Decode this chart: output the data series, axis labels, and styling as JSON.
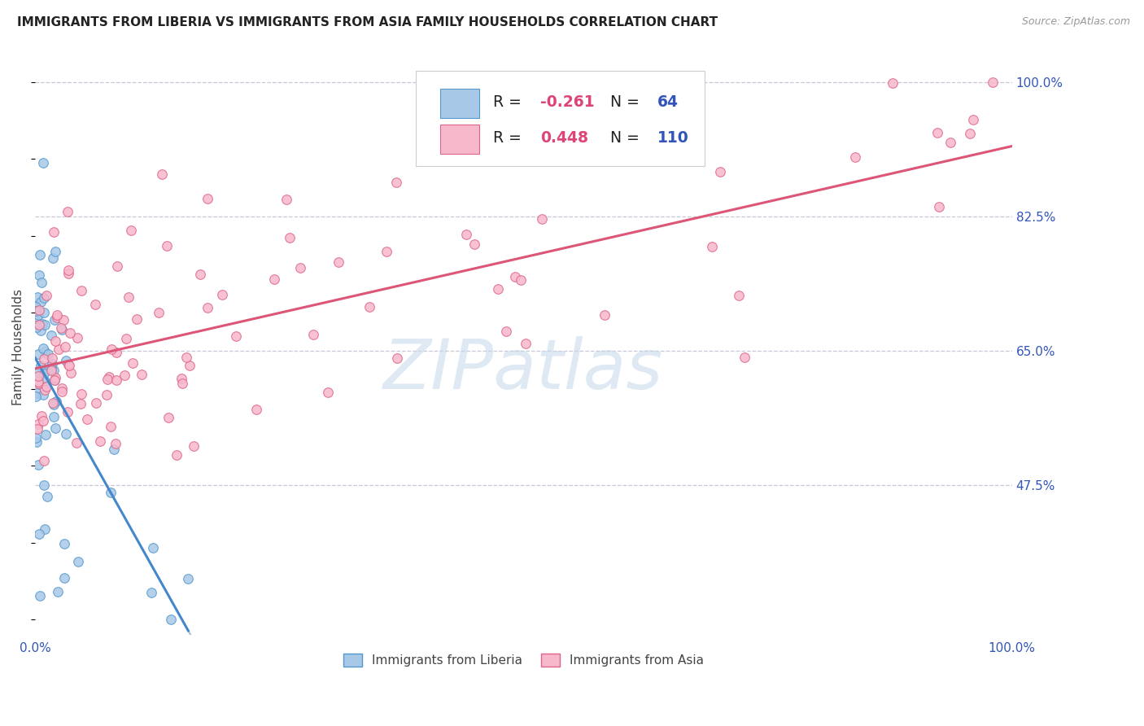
{
  "title": "IMMIGRANTS FROM LIBERIA VS IMMIGRANTS FROM ASIA FAMILY HOUSEHOLDS CORRELATION CHART",
  "source_text": "Source: ZipAtlas.com",
  "ylabel": "Family Households",
  "watermark": "ZIPatlas",
  "legend_liberia_R": "-0.261",
  "legend_liberia_N": "64",
  "legend_asia_R": "0.448",
  "legend_asia_N": "110",
  "xlim": [
    0.0,
    1.0
  ],
  "ylim": [
    0.28,
    1.03
  ],
  "yticks": [
    0.475,
    0.65,
    0.825,
    1.0
  ],
  "ytick_labels": [
    "47.5%",
    "65.0%",
    "82.5%",
    "100.0%"
  ],
  "xtick_labels": [
    "0.0%",
    "100.0%"
  ],
  "background_color": "#ffffff",
  "grid_color": "#c8c8d8",
  "liberia_color": "#a8c8e8",
  "liberia_edge_color": "#5599cc",
  "asia_color": "#f8b8cc",
  "asia_edge_color": "#dd6688",
  "liberia_line_color": "#4488cc",
  "asia_line_color": "#dd5577",
  "dashed_color": "#aabbcc",
  "title_color": "#222222",
  "tick_label_color": "#3355bb",
  "legend_label_color": "#222222",
  "legend_R_color": "#dd4477",
  "legend_N_color": "#3355bb",
  "legend_border_color": "#cccccc",
  "lib_seed": 99,
  "asia_seed": 77
}
